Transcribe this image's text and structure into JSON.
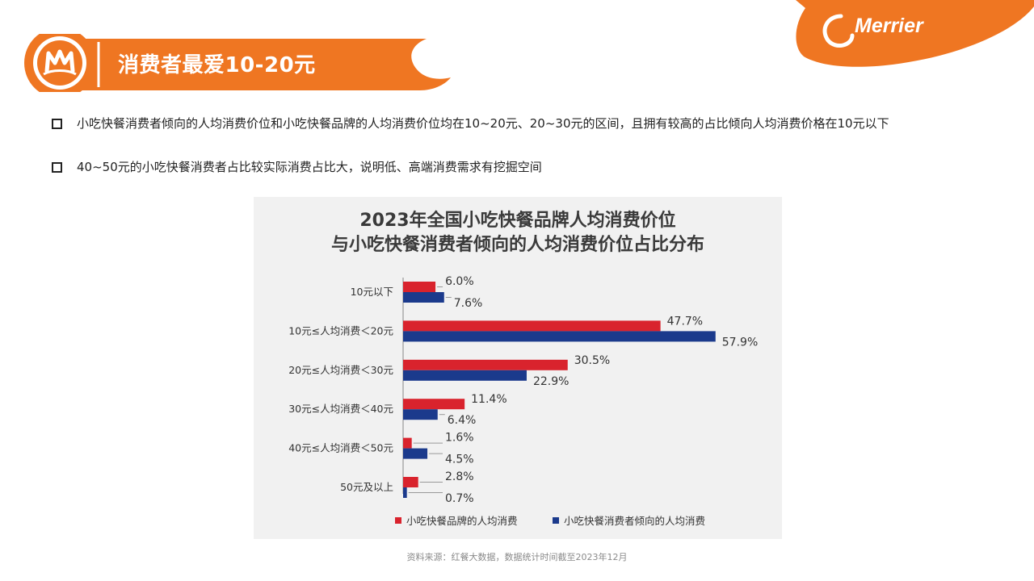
{
  "header": {
    "title": "消费者最爱10-20元",
    "brand": "Merrier"
  },
  "bullets": [
    "小吃快餐消费者倾向的人均消费价位和小吃快餐品牌的人均消费价位均在10~20元、20~30元的区间，且拥有较高的占比倾向人均消费价格在10元以下",
    "40~50元的小吃快餐消费者占比较实际消费占比大，说明低、高端消费需求有挖掘空间"
  ],
  "colors": {
    "orange": "#ef7622",
    "red": "#d9232d",
    "blue": "#1b3a8c"
  },
  "chart_data": {
    "type": "bar",
    "orientation": "horizontal",
    "title_line1": "2023年全国小吃快餐品牌人均消费价位",
    "title_line2": "与小吃快餐消费者倾向的人均消费价位占比分布",
    "categories": [
      "10元以下",
      "10元≤人均消费＜20元",
      "20元≤人均消费＜30元",
      "30元≤人均消费＜40元",
      "40元≤人均消费＜50元",
      "50元及以上"
    ],
    "series": [
      {
        "name": "小吃快餐品牌的人均消费",
        "values": [
          6.0,
          47.7,
          30.5,
          11.4,
          1.6,
          2.8
        ],
        "labels": [
          "6.0%",
          "47.7%",
          "30.5%",
          "11.4%",
          "1.6%",
          "2.8%"
        ],
        "color": "#d9232d"
      },
      {
        "name": "小吃快餐消费者倾向的人均消费",
        "values": [
          7.6,
          57.9,
          22.9,
          6.4,
          4.5,
          0.7
        ],
        "labels": [
          "7.6%",
          "57.9%",
          "22.9%",
          "6.4%",
          "4.5%",
          "0.7%"
        ],
        "color": "#1b3a8c"
      }
    ],
    "unit": "%",
    "legend_position": "bottom"
  },
  "source": "资料来源：红餐大数据，数据统计时间截至2023年12月"
}
